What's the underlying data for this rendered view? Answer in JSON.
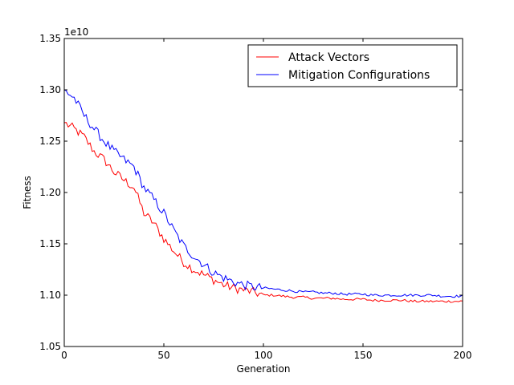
{
  "chart_data": {
    "type": "line",
    "title": "",
    "xlabel": "Generation",
    "ylabel": "Fitness",
    "offset_text": "1e10",
    "xlim": [
      0,
      200
    ],
    "ylim": [
      1.05,
      1.35
    ],
    "x_ticks": [
      0,
      50,
      100,
      150,
      200
    ],
    "x_tick_labels": [
      "0",
      "50",
      "100",
      "150",
      "200"
    ],
    "y_ticks": [
      1.05,
      1.1,
      1.15,
      1.2,
      1.25,
      1.3,
      1.35
    ],
    "y_tick_labels": [
      "1.05",
      "1.10",
      "1.15",
      "1.20",
      "1.25",
      "1.30",
      "1.35"
    ],
    "legend_position": "top-right",
    "series": [
      {
        "name": "Attack Vectors",
        "color": "#ff0000",
        "x": [
          0,
          5,
          10,
          15,
          20,
          25,
          30,
          35,
          40,
          45,
          50,
          55,
          60,
          65,
          70,
          75,
          80,
          85,
          90,
          95,
          100,
          105,
          110,
          115,
          120,
          125,
          130,
          135,
          140,
          145,
          150,
          155,
          160,
          165,
          170,
          175,
          180,
          185,
          190,
          195,
          200
        ],
        "values": [
          1.268,
          1.262,
          1.254,
          1.24,
          1.232,
          1.22,
          1.212,
          1.205,
          1.18,
          1.17,
          1.155,
          1.143,
          1.132,
          1.125,
          1.12,
          1.115,
          1.11,
          1.107,
          1.105,
          1.103,
          1.1,
          1.1,
          1.099,
          1.098,
          1.098,
          1.097,
          1.097,
          1.097,
          1.096,
          1.096,
          1.096,
          1.095,
          1.095,
          1.095,
          1.095,
          1.094,
          1.094,
          1.094,
          1.094,
          1.094,
          1.094
        ]
      },
      {
        "name": "Mitigation Configurations",
        "color": "#0000ff",
        "x": [
          0,
          5,
          10,
          15,
          20,
          25,
          30,
          35,
          40,
          45,
          50,
          55,
          60,
          65,
          70,
          75,
          80,
          85,
          90,
          95,
          100,
          105,
          110,
          115,
          120,
          125,
          130,
          135,
          140,
          145,
          150,
          155,
          160,
          165,
          170,
          175,
          180,
          185,
          190,
          195,
          200
        ],
        "values": [
          1.3,
          1.292,
          1.275,
          1.262,
          1.25,
          1.24,
          1.232,
          1.225,
          1.205,
          1.193,
          1.18,
          1.163,
          1.148,
          1.138,
          1.13,
          1.122,
          1.117,
          1.113,
          1.11,
          1.108,
          1.107,
          1.106,
          1.105,
          1.104,
          1.103,
          1.103,
          1.102,
          1.102,
          1.101,
          1.101,
          1.101,
          1.1,
          1.1,
          1.1,
          1.1,
          1.1,
          1.1,
          1.1,
          1.099,
          1.099,
          1.099
        ]
      }
    ]
  }
}
